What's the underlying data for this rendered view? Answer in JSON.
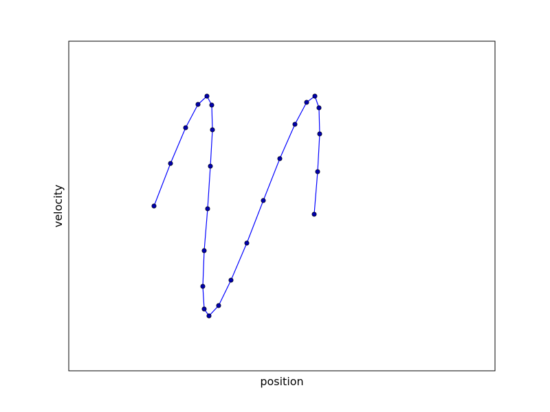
{
  "chart_data": {
    "type": "line",
    "xlabel": "position",
    "ylabel": "velocity",
    "x": [
      124,
      148,
      170,
      188,
      201,
      208,
      209,
      206,
      202,
      197,
      195,
      197,
      204,
      218,
      236,
      259,
      283,
      307,
      329,
      346,
      358,
      364,
      365,
      362,
      357
    ],
    "series": [
      {
        "color": "#0000ff",
        "marker_color": "#0000aa",
        "values": [
          240,
          302,
          354,
          388,
          400,
          387,
          351,
          298,
          236,
          175,
          123,
          90,
          80,
          95,
          132,
          186,
          248,
          309,
          359,
          391,
          400,
          383,
          345,
          290,
          228
        ]
      }
    ],
    "xlim": [
      0,
      620
    ],
    "ylim": [
      0,
      480
    ],
    "grid": false
  }
}
